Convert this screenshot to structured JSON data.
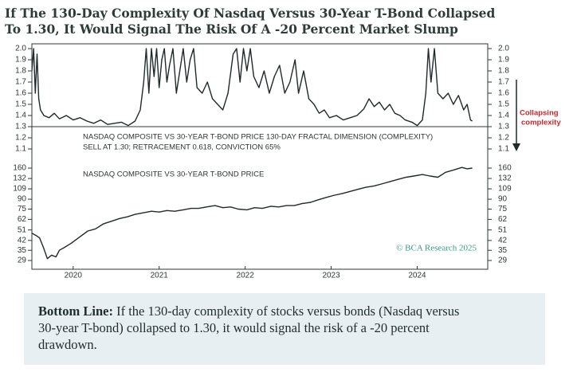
{
  "title_lines": [
    "If The 130-Day Complexity Of Nasdaq Versus 30-Year T-Bond Collapsed",
    "To 1.30, It Would Signal The Risk Of A -20 Percent Market Slump"
  ],
  "side_note": {
    "lines": [
      "Collapsing",
      "complexity"
    ]
  },
  "source": "© BCA Research 2025",
  "chart_data": [
    {
      "type": "line",
      "annotations": [
        "NASDAQ COMPOSITE VS 30-YEAR T-BOND PRICE 130-DAY FRACTAL DIMENSION (COMPLEXITY)",
        "SELL AT 1.30; RETRACEMENT 0.618, CONVICTION 65%"
      ],
      "xlim": [
        2019.52,
        2024.82
      ],
      "xticks": [
        2020,
        2021,
        2022,
        2023,
        2024
      ],
      "ylim": [
        1.1,
        2.0
      ],
      "yticks": [
        {
          "value": 2,
          "label": "2.0"
        },
        1.9,
        1.8,
        1.7,
        1.6,
        1.5,
        1.4,
        1.3,
        1.2,
        1.1
      ],
      "series": [
        {
          "color": "#1e2b2a",
          "x": [
            2019.52,
            2019.54,
            2019.56,
            2019.58,
            2019.6,
            2019.62,
            2019.66,
            2019.72,
            2019.78,
            2019.84,
            2019.92,
            2020.0,
            2020.08,
            2020.16,
            2020.24,
            2020.32,
            2020.4,
            2020.48,
            2020.56,
            2020.64,
            2020.72,
            2020.78,
            2020.82,
            2020.85,
            2020.88,
            2020.91,
            2020.94,
            2020.97,
            2021.0,
            2021.03,
            2021.06,
            2021.09,
            2021.12,
            2021.16,
            2021.2,
            2021.24,
            2021.28,
            2021.32,
            2021.36,
            2021.4,
            2021.44,
            2021.5,
            2021.56,
            2021.62,
            2021.68,
            2021.74,
            2021.8,
            2021.86,
            2021.9,
            2021.94,
            2021.98,
            2022.02,
            2022.06,
            2022.1,
            2022.16,
            2022.22,
            2022.28,
            2022.34,
            2022.4,
            2022.46,
            2022.52,
            2022.58,
            2022.62,
            2022.68,
            2022.74,
            2022.8,
            2022.86,
            2022.92,
            2022.98,
            2023.06,
            2023.14,
            2023.22,
            2023.3,
            2023.38,
            2023.44,
            2023.5,
            2023.56,
            2023.62,
            2023.68,
            2023.74,
            2023.8,
            2023.86,
            2023.94,
            2024.0,
            2024.06,
            2024.1,
            2024.13,
            2024.16,
            2024.2,
            2024.24,
            2024.3,
            2024.36,
            2024.42,
            2024.48,
            2024.54,
            2024.58,
            2024.62,
            2024.64
          ],
          "values": [
            1.8,
            2.0,
            1.6,
            1.95,
            1.55,
            1.45,
            1.4,
            1.38,
            1.42,
            1.37,
            1.4,
            1.36,
            1.38,
            1.35,
            1.33,
            1.36,
            1.32,
            1.33,
            1.34,
            1.31,
            1.35,
            1.45,
            1.7,
            2.0,
            1.6,
            2.0,
            1.75,
            2.0,
            1.65,
            1.9,
            2.0,
            1.7,
            1.85,
            2.0,
            1.6,
            1.8,
            2.0,
            1.7,
            1.9,
            2.0,
            1.65,
            1.6,
            1.7,
            1.55,
            1.5,
            1.45,
            1.6,
            1.95,
            2.0,
            1.7,
            2.0,
            1.8,
            2.0,
            1.75,
            1.65,
            1.8,
            1.6,
            1.75,
            1.85,
            1.6,
            1.7,
            1.9,
            1.6,
            1.8,
            1.55,
            1.5,
            1.42,
            1.45,
            1.38,
            1.4,
            1.36,
            1.38,
            1.4,
            1.46,
            1.55,
            1.48,
            1.52,
            1.45,
            1.5,
            1.42,
            1.4,
            1.36,
            1.34,
            1.31,
            1.36,
            1.6,
            2.0,
            1.7,
            2.0,
            1.6,
            1.55,
            1.6,
            1.5,
            1.58,
            1.45,
            1.5,
            1.36,
            1.35
          ]
        }
      ]
    },
    {
      "type": "line",
      "annotations": [
        "NASDAQ COMPOSITE VS 30-YEAR T-BOND PRICE"
      ],
      "log_scale": true,
      "xlim": [
        2019.52,
        2024.82
      ],
      "xticks": [
        2020,
        2021,
        2022,
        2023,
        2024
      ],
      "ylim": [
        29,
        160
      ],
      "yticks": [
        160,
        132,
        109,
        90,
        75,
        62,
        51,
        42,
        35,
        29
      ],
      "series": [
        {
          "color": "#1e2b2a",
          "x": [
            2019.52,
            2019.57,
            2019.61,
            2019.66,
            2019.7,
            2019.75,
            2019.8,
            2019.84,
            2019.9,
            2019.98,
            2020.08,
            2020.17,
            2020.26,
            2020.35,
            2020.45,
            2020.54,
            2020.63,
            2020.72,
            2020.82,
            2020.91,
            2021.0,
            2021.09,
            2021.18,
            2021.28,
            2021.37,
            2021.46,
            2021.55,
            2021.65,
            2021.74,
            2021.83,
            2021.92,
            2022.02,
            2022.11,
            2022.2,
            2022.3,
            2022.39,
            2022.48,
            2022.57,
            2022.66,
            2022.76,
            2022.85,
            2022.94,
            2023.04,
            2023.13,
            2023.22,
            2023.31,
            2023.4,
            2023.5,
            2023.6,
            2023.69,
            2023.78,
            2023.87,
            2023.96,
            2024.06,
            2024.15,
            2024.24,
            2024.33,
            2024.43,
            2024.52,
            2024.58,
            2024.64
          ],
          "values": [
            48,
            46,
            44,
            36,
            30,
            32,
            31,
            35,
            37,
            40,
            45,
            50,
            52,
            57,
            60,
            63,
            65,
            68,
            70,
            72,
            71,
            73,
            72,
            74,
            76,
            76,
            78,
            80,
            77,
            78,
            75,
            74,
            77,
            76,
            79,
            78,
            80,
            80,
            83,
            85,
            89,
            93,
            97,
            100,
            104,
            108,
            112,
            115,
            120,
            125,
            130,
            135,
            138,
            142,
            138,
            135,
            148,
            155,
            162,
            158,
            160
          ]
        }
      ]
    }
  ],
  "bottom_line": {
    "label": "Bottom Line:",
    "lines": [
      "If the 130-day complexity of stocks versus bonds (Nasdaq versus",
      "30-year T-bond) collapsed to 1.30, it would signal the risk of a -20 percent",
      "drawdown."
    ]
  }
}
